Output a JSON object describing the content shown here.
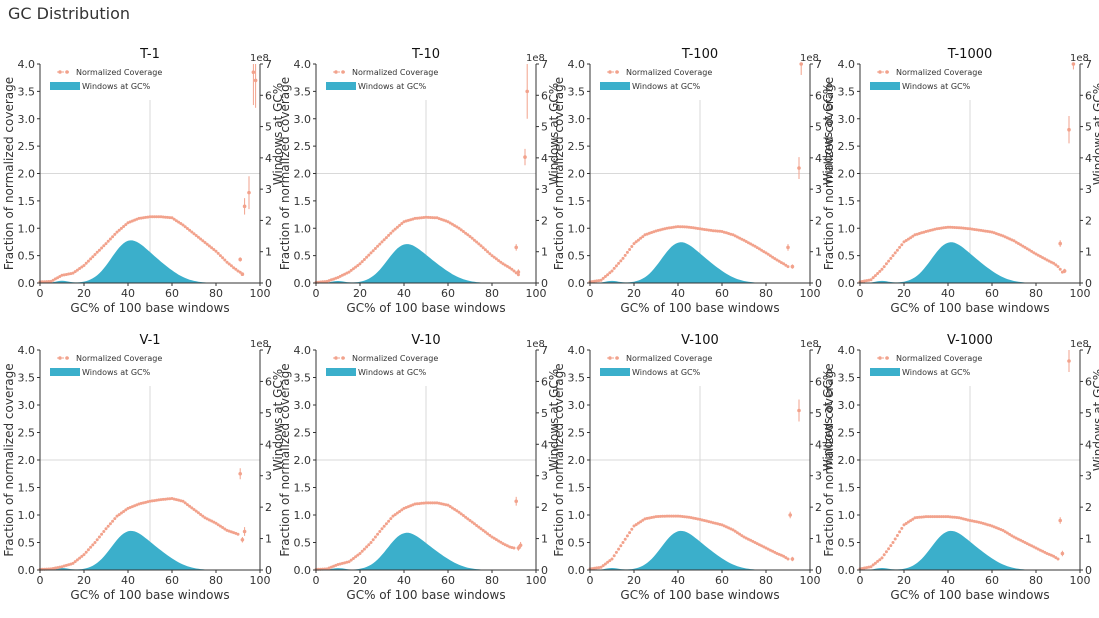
{
  "page_title": "GC Distribution",
  "colors": {
    "coverage": "#F2A28C",
    "windows_fill": "#3BAFCB",
    "grid": "#d9d9d9",
    "axis": "#333333"
  },
  "chart_data": [
    {
      "type": "area+scatter",
      "title": "T-1",
      "xlabel": "GC% of 100 base windows",
      "ylabel_left": "Fraction of normalized coverage",
      "ylabel_right": "Windows at GC%",
      "right_axis_multiplier": "1e8",
      "xlim": [
        0,
        100
      ],
      "ylim_left": [
        0,
        4
      ],
      "ylim_right": [
        0,
        7
      ],
      "x_ticks": [
        0,
        20,
        40,
        60,
        80,
        100
      ],
      "y_ticks_left": [
        "0.0",
        "0.5",
        "1.0",
        "1.5",
        "2.0",
        "2.5",
        "3.0",
        "3.5",
        "4.0"
      ],
      "y_ticks_right": [
        "0",
        "1",
        "2",
        "3",
        "4",
        "5",
        "6",
        "7"
      ],
      "legend": [
        "Normalized Coverage",
        "Windows at GC%"
      ],
      "legend_position": "top-left",
      "windows_peak": 1.15,
      "coverage": [
        [
          0,
          0.02
        ],
        [
          5,
          0.03
        ],
        [
          10,
          0.14
        ],
        [
          15,
          0.18
        ],
        [
          20,
          0.32
        ],
        [
          25,
          0.52
        ],
        [
          30,
          0.72
        ],
        [
          35,
          0.93
        ],
        [
          40,
          1.1
        ],
        [
          45,
          1.18
        ],
        [
          50,
          1.21
        ],
        [
          55,
          1.21
        ],
        [
          60,
          1.19
        ],
        [
          65,
          1.06
        ],
        [
          70,
          0.9
        ],
        [
          75,
          0.74
        ],
        [
          80,
          0.58
        ],
        [
          85,
          0.38
        ],
        [
          88,
          0.28
        ],
        [
          90,
          0.22
        ],
        [
          92,
          0.17
        ]
      ],
      "outliers": [
        [
          91,
          0.43,
          0.04
        ],
        [
          92,
          0.16,
          0.03
        ],
        [
          93,
          1.4,
          0.15
        ],
        [
          95,
          1.65,
          0.3
        ],
        [
          97,
          3.85,
          0.6
        ],
        [
          98,
          3.7,
          0.5
        ]
      ]
    },
    {
      "type": "area+scatter",
      "title": "T-10",
      "xlabel": "GC% of 100 base windows",
      "ylabel_left": "Fraction of normalized coverage",
      "ylabel_right": "Windows at GC%",
      "right_axis_multiplier": "1e8",
      "xlim": [
        0,
        100
      ],
      "ylim_left": [
        0,
        4
      ],
      "ylim_right": [
        0,
        7
      ],
      "x_ticks": [
        0,
        20,
        40,
        60,
        80,
        100
      ],
      "y_ticks_left": [
        "0.0",
        "0.5",
        "1.0",
        "1.5",
        "2.0",
        "2.5",
        "3.0",
        "3.5",
        "4.0"
      ],
      "y_ticks_right": [
        "0",
        "1",
        "2",
        "3",
        "4",
        "5",
        "6",
        "7"
      ],
      "legend": [
        "Normalized Coverage",
        "Windows at GC%"
      ],
      "legend_position": "top-left",
      "windows_peak": 1.05,
      "coverage": [
        [
          0,
          0.01
        ],
        [
          5,
          0.03
        ],
        [
          10,
          0.1
        ],
        [
          15,
          0.2
        ],
        [
          20,
          0.35
        ],
        [
          25,
          0.55
        ],
        [
          30,
          0.75
        ],
        [
          35,
          0.95
        ],
        [
          40,
          1.12
        ],
        [
          45,
          1.18
        ],
        [
          50,
          1.2
        ],
        [
          55,
          1.19
        ],
        [
          60,
          1.12
        ],
        [
          65,
          1.0
        ],
        [
          70,
          0.85
        ],
        [
          75,
          0.68
        ],
        [
          80,
          0.5
        ],
        [
          85,
          0.35
        ],
        [
          88,
          0.28
        ],
        [
          90,
          0.22
        ],
        [
          92,
          0.15
        ]
      ],
      "outliers": [
        [
          91,
          0.65,
          0.06
        ],
        [
          92,
          0.2,
          0.05
        ],
        [
          95,
          2.3,
          0.15
        ],
        [
          96,
          3.5,
          0.5
        ]
      ]
    },
    {
      "type": "area+scatter",
      "title": "T-100",
      "xlabel": "GC% of 100 base windows",
      "ylabel_left": "Fraction of normalized coverage",
      "ylabel_right": "Windows at GC%",
      "right_axis_multiplier": "1e8",
      "xlim": [
        0,
        100
      ],
      "ylim_left": [
        0,
        4
      ],
      "ylim_right": [
        0,
        7
      ],
      "x_ticks": [
        0,
        20,
        40,
        60,
        80,
        100
      ],
      "y_ticks_left": [
        "0.0",
        "0.5",
        "1.0",
        "1.5",
        "2.0",
        "2.5",
        "3.0",
        "3.5",
        "4.0"
      ],
      "y_ticks_right": [
        "0",
        "1",
        "2",
        "3",
        "4",
        "5",
        "6",
        "7"
      ],
      "legend": [
        "Normalized Coverage",
        "Windows at GC%"
      ],
      "legend_position": "top-left",
      "windows_peak": 1.1,
      "coverage": [
        [
          0,
          0.02
        ],
        [
          5,
          0.05
        ],
        [
          10,
          0.22
        ],
        [
          15,
          0.45
        ],
        [
          20,
          0.72
        ],
        [
          25,
          0.88
        ],
        [
          30,
          0.95
        ],
        [
          35,
          1.0
        ],
        [
          40,
          1.03
        ],
        [
          45,
          1.02
        ],
        [
          50,
          0.99
        ],
        [
          55,
          0.96
        ],
        [
          60,
          0.94
        ],
        [
          65,
          0.88
        ],
        [
          70,
          0.78
        ],
        [
          75,
          0.67
        ],
        [
          80,
          0.55
        ],
        [
          85,
          0.42
        ],
        [
          88,
          0.35
        ],
        [
          90,
          0.3
        ]
      ],
      "outliers": [
        [
          90,
          0.65,
          0.06
        ],
        [
          92,
          0.3,
          0.04
        ],
        [
          95,
          2.1,
          0.2
        ],
        [
          96,
          4.1,
          0.3
        ]
      ]
    },
    {
      "type": "area+scatter",
      "title": "T-1000",
      "xlabel": "GC% of 100 base windows",
      "ylabel_left": "Fraction of normalized coverage",
      "ylabel_right": "Windows at GC%",
      "right_axis_multiplier": "1e8",
      "xlim": [
        0,
        100
      ],
      "ylim_left": [
        0,
        4
      ],
      "ylim_right": [
        0,
        7
      ],
      "x_ticks": [
        0,
        20,
        40,
        60,
        80,
        100
      ],
      "y_ticks_left": [
        "0.0",
        "0.5",
        "1.0",
        "1.5",
        "2.0",
        "2.5",
        "3.0",
        "3.5",
        "4.0"
      ],
      "y_ticks_right": [
        "0",
        "1",
        "2",
        "3",
        "4",
        "5",
        "6",
        "7"
      ],
      "legend": [
        "Normalized Coverage",
        "Windows at GC%"
      ],
      "legend_position": "top-left",
      "windows_peak": 1.1,
      "coverage": [
        [
          0,
          0.02
        ],
        [
          5,
          0.06
        ],
        [
          10,
          0.25
        ],
        [
          15,
          0.5
        ],
        [
          20,
          0.75
        ],
        [
          25,
          0.88
        ],
        [
          30,
          0.94
        ],
        [
          35,
          0.99
        ],
        [
          40,
          1.02
        ],
        [
          45,
          1.01
        ],
        [
          50,
          0.99
        ],
        [
          55,
          0.96
        ],
        [
          60,
          0.93
        ],
        [
          65,
          0.86
        ],
        [
          70,
          0.77
        ],
        [
          75,
          0.65
        ],
        [
          80,
          0.53
        ],
        [
          85,
          0.42
        ],
        [
          88,
          0.36
        ],
        [
          90,
          0.3
        ],
        [
          92,
          0.2
        ]
      ],
      "outliers": [
        [
          91,
          0.72,
          0.06
        ],
        [
          93,
          0.22,
          0.04
        ],
        [
          95,
          2.8,
          0.25
        ],
        [
          97,
          4.0,
          0.1
        ]
      ]
    },
    {
      "type": "area+scatter",
      "title": "V-1",
      "xlabel": "GC% of 100 base windows",
      "ylabel_left": "Fraction of normalized coverage",
      "ylabel_right": "Windows at GC%",
      "right_axis_multiplier": "1e8",
      "xlim": [
        0,
        100
      ],
      "ylim_left": [
        0,
        4
      ],
      "ylim_right": [
        0,
        7
      ],
      "x_ticks": [
        0,
        20,
        40,
        60,
        80,
        100
      ],
      "y_ticks_left": [
        "0.0",
        "0.5",
        "1.0",
        "1.5",
        "2.0",
        "2.5",
        "3.0",
        "3.5",
        "4.0"
      ],
      "y_ticks_right": [
        "0",
        "1",
        "2",
        "3",
        "4",
        "5",
        "6",
        "7"
      ],
      "legend": [
        "Normalized Coverage",
        "Windows at GC%"
      ],
      "legend_position": "top-left",
      "windows_peak": 1.05,
      "coverage": [
        [
          0,
          0.01
        ],
        [
          5,
          0.02
        ],
        [
          10,
          0.06
        ],
        [
          15,
          0.12
        ],
        [
          20,
          0.28
        ],
        [
          25,
          0.5
        ],
        [
          30,
          0.75
        ],
        [
          35,
          0.98
        ],
        [
          40,
          1.12
        ],
        [
          45,
          1.2
        ],
        [
          50,
          1.25
        ],
        [
          55,
          1.28
        ],
        [
          60,
          1.3
        ],
        [
          65,
          1.25
        ],
        [
          70,
          1.1
        ],
        [
          75,
          0.95
        ],
        [
          80,
          0.85
        ],
        [
          85,
          0.72
        ],
        [
          88,
          0.68
        ],
        [
          90,
          0.65
        ]
      ],
      "outliers": [
        [
          91,
          1.75,
          0.1
        ],
        [
          92,
          0.55,
          0.05
        ],
        [
          93,
          0.7,
          0.08
        ]
      ]
    },
    {
      "type": "area+scatter",
      "title": "V-10",
      "xlabel": "GC% of 100 base windows",
      "ylabel_left": "Fraction of normalized coverage",
      "ylabel_right": "Windows at GC%",
      "right_axis_multiplier": "1e8",
      "xlim": [
        0,
        100
      ],
      "ylim_left": [
        0,
        4
      ],
      "ylim_right": [
        0,
        7
      ],
      "x_ticks": [
        0,
        20,
        40,
        60,
        80,
        100
      ],
      "y_ticks_left": [
        "0.0",
        "0.5",
        "1.0",
        "1.5",
        "2.0",
        "2.5",
        "3.0",
        "3.5",
        "4.0"
      ],
      "y_ticks_right": [
        "0",
        "1",
        "2",
        "3",
        "4",
        "5",
        "6",
        "7"
      ],
      "legend": [
        "Normalized Coverage",
        "Windows at GC%"
      ],
      "legend_position": "top-left",
      "windows_peak": 1.0,
      "coverage": [
        [
          0,
          0.01
        ],
        [
          5,
          0.02
        ],
        [
          10,
          0.1
        ],
        [
          15,
          0.15
        ],
        [
          20,
          0.3
        ],
        [
          25,
          0.5
        ],
        [
          30,
          0.75
        ],
        [
          35,
          0.98
        ],
        [
          40,
          1.12
        ],
        [
          45,
          1.2
        ],
        [
          50,
          1.22
        ],
        [
          55,
          1.22
        ],
        [
          60,
          1.18
        ],
        [
          65,
          1.05
        ],
        [
          70,
          0.9
        ],
        [
          75,
          0.75
        ],
        [
          80,
          0.6
        ],
        [
          85,
          0.48
        ],
        [
          88,
          0.42
        ],
        [
          90,
          0.4
        ]
      ],
      "outliers": [
        [
          91,
          1.25,
          0.08
        ],
        [
          92,
          0.4,
          0.05
        ],
        [
          93,
          0.45,
          0.06
        ]
      ]
    },
    {
      "type": "area+scatter",
      "title": "V-100",
      "xlabel": "GC% of 100 base windows",
      "ylabel_left": "Fraction of normalized coverage",
      "ylabel_right": "Windows at GC%",
      "right_axis_multiplier": "1e8",
      "xlim": [
        0,
        100
      ],
      "ylim_left": [
        0,
        4
      ],
      "ylim_right": [
        0,
        7
      ],
      "x_ticks": [
        0,
        20,
        40,
        60,
        80,
        100
      ],
      "y_ticks_left": [
        "0.0",
        "0.5",
        "1.0",
        "1.5",
        "2.0",
        "2.5",
        "3.0",
        "3.5",
        "4.0"
      ],
      "y_ticks_right": [
        "0",
        "1",
        "2",
        "3",
        "4",
        "5",
        "6",
        "7"
      ],
      "legend": [
        "Normalized Coverage",
        "Windows at GC%"
      ],
      "legend_position": "top-left",
      "windows_peak": 1.05,
      "coverage": [
        [
          0,
          0.02
        ],
        [
          5,
          0.05
        ],
        [
          10,
          0.2
        ],
        [
          15,
          0.5
        ],
        [
          20,
          0.8
        ],
        [
          25,
          0.93
        ],
        [
          30,
          0.97
        ],
        [
          35,
          0.98
        ],
        [
          40,
          0.98
        ],
        [
          45,
          0.96
        ],
        [
          50,
          0.92
        ],
        [
          55,
          0.87
        ],
        [
          60,
          0.82
        ],
        [
          65,
          0.73
        ],
        [
          70,
          0.6
        ],
        [
          75,
          0.5
        ],
        [
          80,
          0.4
        ],
        [
          85,
          0.3
        ],
        [
          88,
          0.25
        ],
        [
          90,
          0.2
        ]
      ],
      "outliers": [
        [
          91,
          1.0,
          0.06
        ],
        [
          92,
          0.2,
          0.04
        ],
        [
          95,
          2.9,
          0.2
        ]
      ]
    },
    {
      "type": "area+scatter",
      "title": "V-1000",
      "xlabel": "GC% of 100 base windows",
      "ylabel_left": "Fraction of normalized coverage",
      "ylabel_right": "Windows at GC%",
      "right_axis_multiplier": "1e8",
      "xlim": [
        0,
        100
      ],
      "ylim_left": [
        0,
        4
      ],
      "ylim_right": [
        0,
        7
      ],
      "x_ticks": [
        0,
        20,
        40,
        60,
        80,
        100
      ],
      "y_ticks_left": [
        "0.0",
        "0.5",
        "1.0",
        "1.5",
        "2.0",
        "2.5",
        "3.0",
        "3.5",
        "4.0"
      ],
      "y_ticks_right": [
        "0",
        "1",
        "2",
        "3",
        "4",
        "5",
        "6",
        "7"
      ],
      "legend": [
        "Normalized Coverage",
        "Windows at GC%"
      ],
      "legend_position": "top-left",
      "windows_peak": 1.05,
      "coverage": [
        [
          0,
          0.02
        ],
        [
          5,
          0.06
        ],
        [
          10,
          0.22
        ],
        [
          15,
          0.5
        ],
        [
          20,
          0.82
        ],
        [
          25,
          0.95
        ],
        [
          30,
          0.97
        ],
        [
          35,
          0.97
        ],
        [
          40,
          0.97
        ],
        [
          45,
          0.95
        ],
        [
          50,
          0.9
        ],
        [
          55,
          0.86
        ],
        [
          60,
          0.8
        ],
        [
          65,
          0.72
        ],
        [
          70,
          0.6
        ],
        [
          75,
          0.5
        ],
        [
          80,
          0.4
        ],
        [
          85,
          0.3
        ],
        [
          88,
          0.25
        ],
        [
          90,
          0.2
        ]
      ],
      "outliers": [
        [
          91,
          0.9,
          0.06
        ],
        [
          92,
          0.3,
          0.05
        ],
        [
          95,
          3.8,
          0.2
        ]
      ]
    }
  ]
}
